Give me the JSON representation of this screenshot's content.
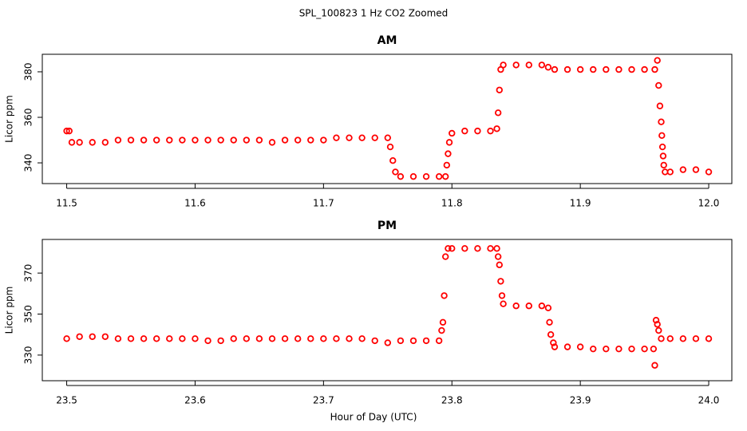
{
  "title": "SPL_100823  1 Hz CO2 Zoomed",
  "x_label": "Hour of Day (UTC)",
  "chart_data": [
    {
      "type": "scatter",
      "title": "AM",
      "y_label": "Licor ppm",
      "color": "#ff0000",
      "xlim": [
        11.481,
        12.018
      ],
      "ylim": [
        330.9,
        387.7
      ],
      "xticks": [
        11.5,
        11.6,
        11.7,
        11.8,
        11.9,
        {
          "value": 12,
          "label": "12.0"
        }
      ],
      "yticks": [
        340,
        360,
        380
      ],
      "x": [
        11.5,
        11.502,
        11.504,
        11.51,
        11.52,
        11.53,
        11.54,
        11.55,
        11.56,
        11.57,
        11.58,
        11.59,
        11.6,
        11.61,
        11.62,
        11.63,
        11.64,
        11.65,
        11.66,
        11.67,
        11.68,
        11.69,
        11.7,
        11.71,
        11.72,
        11.73,
        11.74,
        11.75,
        11.752,
        11.754,
        11.756,
        11.76,
        11.77,
        11.78,
        11.79,
        11.795,
        11.796,
        11.797,
        11.798,
        11.8,
        11.81,
        11.82,
        11.83,
        11.835,
        11.836,
        11.837,
        11.838,
        11.84,
        11.85,
        11.86,
        11.87,
        11.875,
        11.88,
        11.89,
        11.9,
        11.91,
        11.92,
        11.93,
        11.94,
        11.95,
        11.958,
        11.96,
        11.961,
        11.962,
        11.963,
        11.9635,
        11.964,
        11.9645,
        11.965,
        11.966,
        11.97,
        11.98,
        11.99,
        12.0
      ],
      "values": [
        354,
        354,
        349,
        349,
        349,
        349,
        350,
        350,
        350,
        350,
        350,
        350,
        350,
        350,
        350,
        350,
        350,
        350,
        349,
        350,
        350,
        350,
        350,
        351,
        351,
        351,
        351,
        351,
        347,
        341,
        336,
        334,
        334,
        334,
        334,
        334,
        339,
        344,
        349,
        353,
        354,
        354,
        354,
        355,
        362,
        372,
        381,
        383,
        383,
        383,
        383,
        382,
        381,
        381,
        381,
        381,
        381,
        381,
        381,
        381,
        381,
        385,
        374,
        365,
        358,
        352,
        347,
        343,
        339,
        336,
        336,
        337,
        337,
        336
      ]
    },
    {
      "type": "scatter",
      "title": "PM",
      "y_label": "Licor ppm",
      "color": "#ff0000",
      "xlim": [
        23.481,
        24.018
      ],
      "ylim": [
        317.5,
        386.4
      ],
      "xticks": [
        23.5,
        23.6,
        23.7,
        23.8,
        23.9,
        {
          "value": 24,
          "label": "24.0"
        }
      ],
      "yticks": [
        330,
        350,
        370
      ],
      "x": [
        23.5,
        23.51,
        23.52,
        23.53,
        23.54,
        23.55,
        23.56,
        23.57,
        23.58,
        23.59,
        23.6,
        23.61,
        23.62,
        23.63,
        23.64,
        23.65,
        23.66,
        23.67,
        23.68,
        23.69,
        23.7,
        23.71,
        23.72,
        23.73,
        23.74,
        23.75,
        23.76,
        23.77,
        23.78,
        23.79,
        23.792,
        23.793,
        23.794,
        23.795,
        23.797,
        23.8,
        23.81,
        23.82,
        23.83,
        23.835,
        23.836,
        23.837,
        23.838,
        23.839,
        23.84,
        23.85,
        23.86,
        23.87,
        23.875,
        23.876,
        23.877,
        23.879,
        23.88,
        23.89,
        23.9,
        23.91,
        23.92,
        23.93,
        23.94,
        23.95,
        23.957,
        23.958,
        23.959,
        23.96,
        23.961,
        23.963,
        23.97,
        23.98,
        23.99,
        24.0
      ],
      "values": [
        338,
        339,
        339,
        339,
        338,
        338,
        338,
        338,
        338,
        338,
        338,
        337,
        337,
        338,
        338,
        338,
        338,
        338,
        338,
        338,
        338,
        338,
        338,
        338,
        337,
        336,
        337,
        337,
        337,
        337,
        342,
        346,
        359,
        378,
        382,
        382,
        382,
        382,
        382,
        382,
        378,
        374,
        366,
        359,
        355,
        354,
        354,
        354,
        353,
        346,
        340,
        336,
        334,
        334,
        334,
        333,
        333,
        333,
        333,
        333,
        333,
        325,
        347,
        345,
        342,
        338,
        338,
        338,
        338,
        338
      ]
    }
  ]
}
